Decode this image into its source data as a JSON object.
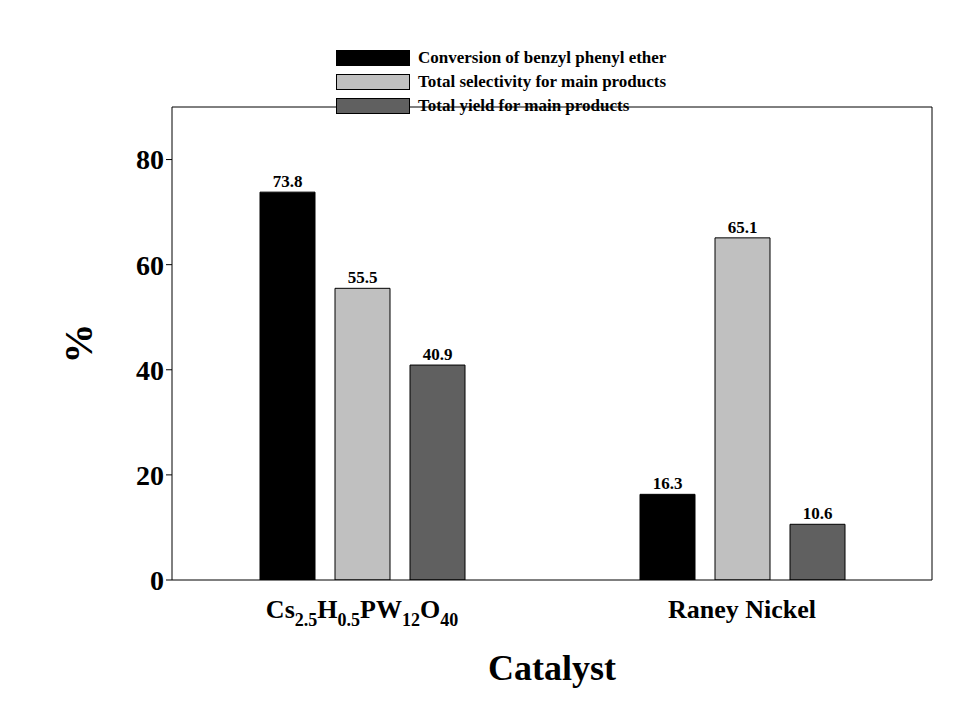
{
  "chart_data": {
    "type": "bar",
    "xlabel": "Catalyst",
    "ylabel": "%",
    "categories": [
      "Cs2.5H0.5PW12O40",
      "Raney Nickel"
    ],
    "series": [
      {
        "name": "Conversion of benzyl phenyl ether",
        "color": "#000000",
        "values": [
          73.8,
          16.3
        ]
      },
      {
        "name": "Total selectivity for main products",
        "color": "#c0c0c0",
        "values": [
          55.5,
          65.1
        ]
      },
      {
        "name": "Total yield for main products",
        "color": "#606060",
        "values": [
          40.9,
          10.6
        ]
      }
    ],
    "ylim": [
      0,
      90
    ],
    "yticks": [
      0,
      20,
      40,
      60,
      80
    ],
    "grid": false,
    "legend": "top",
    "data_labels": true
  }
}
